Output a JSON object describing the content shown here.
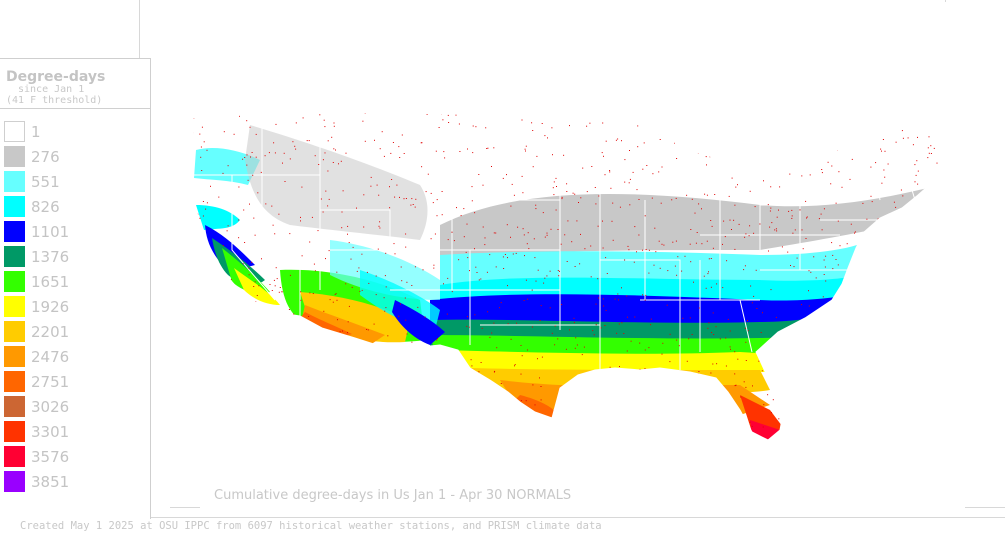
{
  "legend": {
    "title": "Degree-days",
    "subtitle_line1": "since Jan 1",
    "subtitle_line2": "(41 F threshold)",
    "entries": [
      {
        "label": "1",
        "color": "#ffffff"
      },
      {
        "label": "276",
        "color": "#c8c8c8"
      },
      {
        "label": "551",
        "color": "#66ffff"
      },
      {
        "label": "826",
        "color": "#00ffff"
      },
      {
        "label": "1101",
        "color": "#0000ff"
      },
      {
        "label": "1376",
        "color": "#009966"
      },
      {
        "label": "1651",
        "color": "#33ff00"
      },
      {
        "label": "1926",
        "color": "#ffff00"
      },
      {
        "label": "2201",
        "color": "#ffcc00"
      },
      {
        "label": "2476",
        "color": "#ff9900"
      },
      {
        "label": "2751",
        "color": "#ff6600"
      },
      {
        "label": "3026",
        "color": "#cc6633"
      },
      {
        "label": "3301",
        "color": "#ff3300"
      },
      {
        "label": "3576",
        "color": "#ff0033"
      },
      {
        "label": "3851",
        "color": "#9900ff"
      }
    ]
  },
  "map": {
    "title": "Cumulative degree-days in Us  Jan 1 - Apr 30 NORMALS",
    "station_color": "#e00000",
    "border_color": "#ffffff"
  },
  "footer": {
    "credit": "Created May 1 2025 at OSU IPPC from 6097 historical weather stations, and PRISM climate data"
  }
}
